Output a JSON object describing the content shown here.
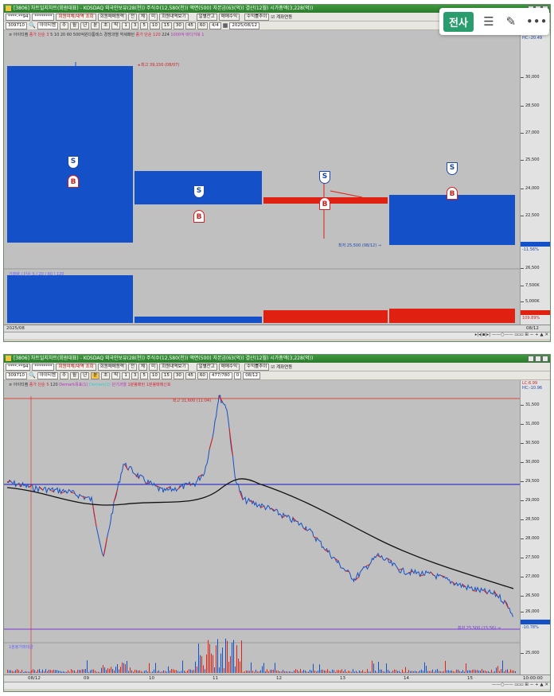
{
  "overlay_toolbar": {
    "primary_label": "전사",
    "menu_icon": "hamburger-icon",
    "edit_icon": "pencil-icon",
    "more_icon": "more-icon"
  },
  "panel1": {
    "title": "[3806] 차트일지차트(회원대표) - KOSDAQ 외국인보유(28(천)) 주식수(12,580(천)) 액면(500) 자본금(63(억)) 결산(12월) 시가총액(3,228(억))",
    "toolbar": {
      "account": "****-**94",
      "password": "********",
      "b1": "회원미체/내역 조회",
      "b2": "회원매매동력",
      "b3": "전",
      "b4": "체",
      "b5": "미",
      "b6": "회원내역보기",
      "b7": "일별잔고",
      "b8": "매매수익",
      "b9": "수익률추이",
      "check_label": "계좌연동"
    },
    "toolbar2": {
      "code": "309710",
      "name": "아이티켐",
      "periods": [
        "주",
        "월",
        "년",
        "분",
        "초",
        "틱"
      ],
      "minutes": [
        "1",
        "3",
        "5",
        "10",
        "15",
        "30",
        "45",
        "60"
      ],
      "count": "4/4",
      "date": "2025/08/12"
    },
    "legend": {
      "name": "아이티켐",
      "item1": "종가 단순 3",
      "item2": "5 10 20 60",
      "item3": "500억원다툼테스 경쟁과열",
      "item4": "약세패턴",
      "item5": "종가 단순 120",
      "item6": "224",
      "item7": "1000억",
      "item8": "바다거북",
      "item9": "1"
    },
    "labels": {
      "high": "최고 39,150 (08/07)",
      "low": "최저 25,500 (08/12)"
    },
    "price_axis": [
      "30,000",
      "28,500",
      "27,000",
      "25,500",
      "24,000",
      "22,500",
      "21,000",
      "19,500",
      "26,500",
      "24,000"
    ],
    "axis_top": [
      "LC:6.99",
      "HC:-20.49"
    ],
    "axis_right_labels": [
      "-11.56%"
    ],
    "volume_legend": "거래량 | 단순 5 | 20 | 60 | 120",
    "volume_axis": [
      "7,500K",
      "5,000K",
      "2,500K",
      "109.89%"
    ],
    "date_label": "2025/08",
    "date_right": "08/12",
    "markers": [
      "S",
      "B"
    ]
  },
  "panel2": {
    "title": "[3806] 차트일지차트(회원대표) - KOSDAQ 외국인보유(28(천)) 주식수(12,580(천)) 액면(500) 자본금(63(억)) 결산(12월) 시가총액(3,228(억))",
    "toolbar2": {
      "count": "477/780",
      "zoom": "0",
      "date": "08/12"
    },
    "legend": {
      "name": "아이티켐",
      "item1": "종가 단순 5",
      "item2": "120",
      "item3": "Demark목표(1)",
      "item4": "Demark(2)",
      "item5": "단기과열",
      "item6": "1분봉패턴",
      "item7": "1분봉매매신호"
    },
    "labels": {
      "high": "최고 31,600 (11:04)",
      "low": "최저 25,500 (15:56)"
    },
    "price_axis": [
      "31,500",
      "31,000",
      "30,500",
      "30,000",
      "29,500",
      "29,000",
      "28,500",
      "28,000",
      "27,500",
      "27,000",
      "26,500",
      "26,000"
    ],
    "axis_top": [
      "LC:6.99",
      "HC:-10.96"
    ],
    "axis_pct": "-10.78%",
    "volume_legend": "1분봉거래대금",
    "volume_axis": [
      "25,000"
    ],
    "x_labels": [
      "08/12",
      "09",
      "10",
      "11",
      "12",
      "13",
      "14",
      "15"
    ],
    "x_right": "10:00:00"
  },
  "colors": {
    "bull": "#e02010",
    "bear": "#1450c8",
    "chart_bg": "#c0c0c0",
    "title_green": "#2c7a2c",
    "accent": "#2a9d6e"
  }
}
